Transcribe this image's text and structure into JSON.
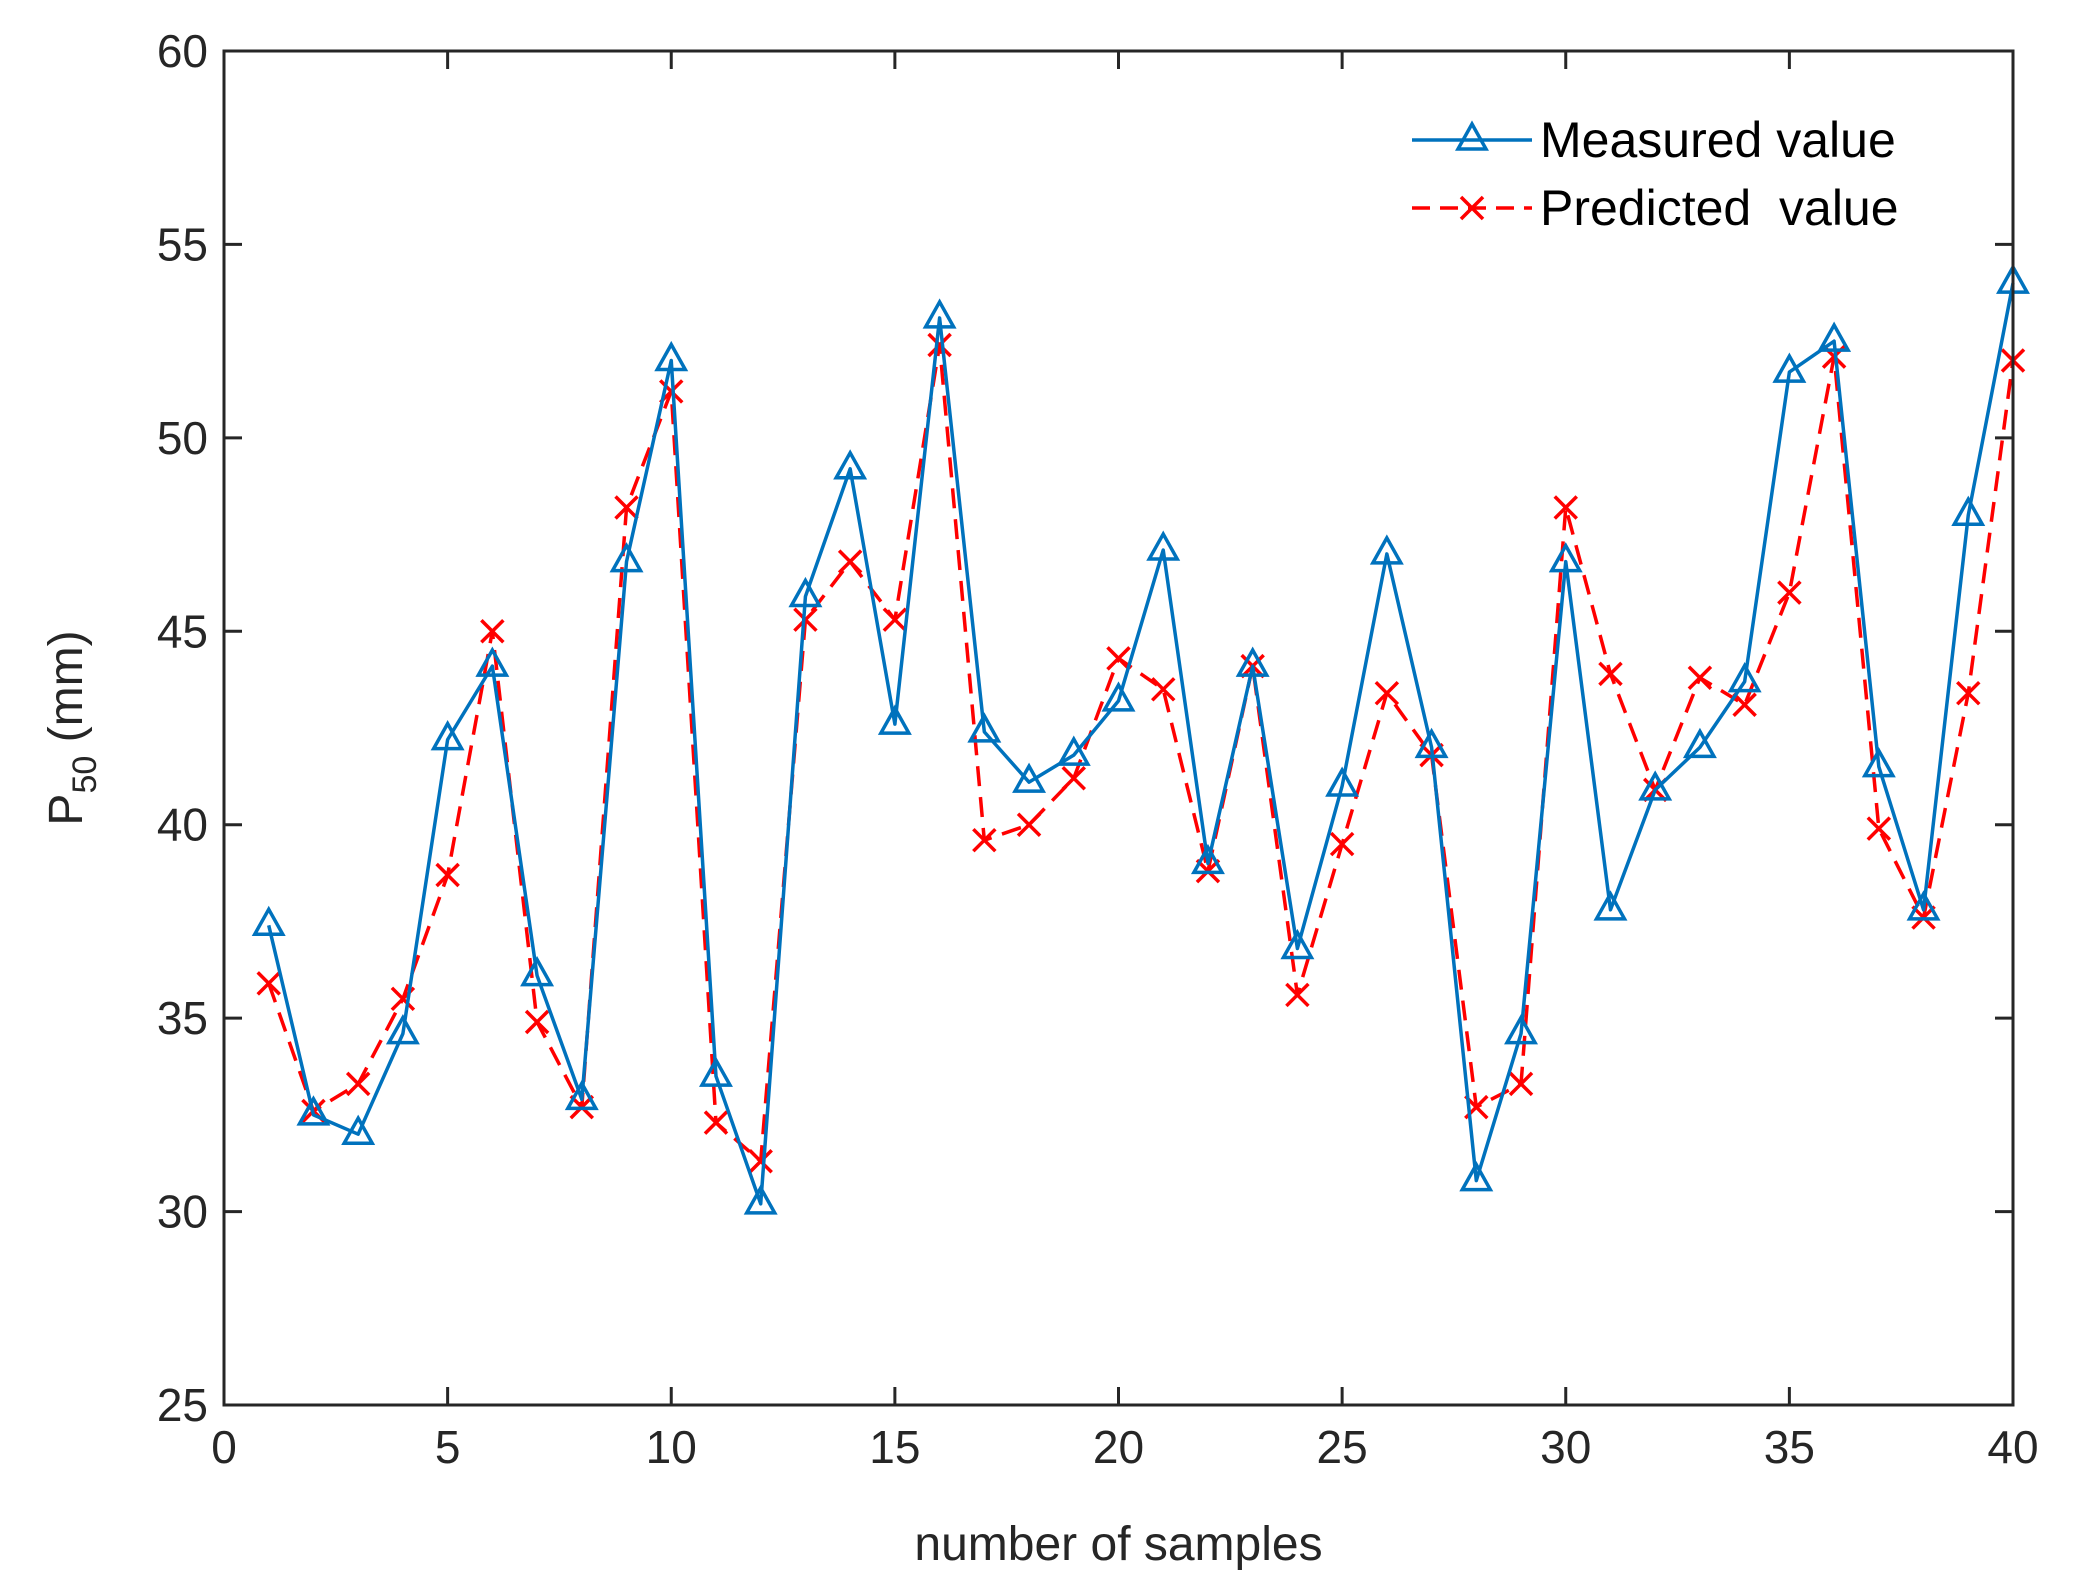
{
  "chart_data": {
    "type": "line",
    "title": "",
    "xlabel": "number of samples",
    "ylabel": {
      "main": "P",
      "subscript": "50",
      "unit": " (mm)"
    },
    "xlim": [
      0,
      40
    ],
    "ylim": [
      25,
      60
    ],
    "xticks": [
      0,
      5,
      10,
      15,
      20,
      25,
      30,
      35,
      40
    ],
    "yticks": [
      25,
      30,
      35,
      40,
      45,
      50,
      55,
      60
    ],
    "grid": false,
    "legend_position": "top-right",
    "series": [
      {
        "name": "Measured value",
        "color": "#0072BD",
        "line_style": "solid",
        "marker": "triangle",
        "x": [
          1,
          2,
          3,
          4,
          5,
          6,
          7,
          8,
          9,
          10,
          11,
          12,
          13,
          14,
          15,
          16,
          17,
          18,
          19,
          20,
          21,
          22,
          23,
          24,
          25,
          26,
          27,
          28,
          29,
          30,
          31,
          32,
          33,
          34,
          35,
          36,
          37,
          38,
          39,
          40
        ],
        "values": [
          37.4,
          32.5,
          32.0,
          34.6,
          42.2,
          44.1,
          36.1,
          32.9,
          46.8,
          52.0,
          33.5,
          30.2,
          45.9,
          49.2,
          42.6,
          53.1,
          42.4,
          41.1,
          41.8,
          43.2,
          47.1,
          39.0,
          44.1,
          36.8,
          41.0,
          47.0,
          42.0,
          30.8,
          34.6,
          46.8,
          37.8,
          40.9,
          42.0,
          43.7,
          51.7,
          52.5,
          41.5,
          37.8,
          48.0,
          54.0
        ]
      },
      {
        "name": "Predicted  value",
        "color": "#FF0000",
        "line_style": "dashed",
        "marker": "x",
        "x": [
          1,
          2,
          3,
          4,
          5,
          6,
          7,
          8,
          9,
          10,
          11,
          12,
          13,
          14,
          15,
          16,
          17,
          18,
          19,
          20,
          21,
          22,
          23,
          24,
          25,
          26,
          27,
          28,
          29,
          30,
          31,
          32,
          33,
          34,
          35,
          36,
          37,
          38,
          39,
          40
        ],
        "values": [
          35.9,
          32.6,
          33.3,
          35.5,
          38.7,
          45.0,
          34.9,
          32.7,
          48.2,
          51.2,
          32.3,
          31.3,
          45.3,
          46.8,
          45.3,
          52.4,
          39.6,
          40.0,
          41.2,
          44.3,
          43.5,
          38.8,
          44.1,
          35.6,
          39.5,
          43.4,
          41.8,
          32.7,
          33.3,
          48.2,
          43.9,
          40.9,
          43.8,
          43.1,
          46.0,
          52.1,
          39.9,
          37.6,
          43.4,
          52.0
        ]
      }
    ]
  }
}
